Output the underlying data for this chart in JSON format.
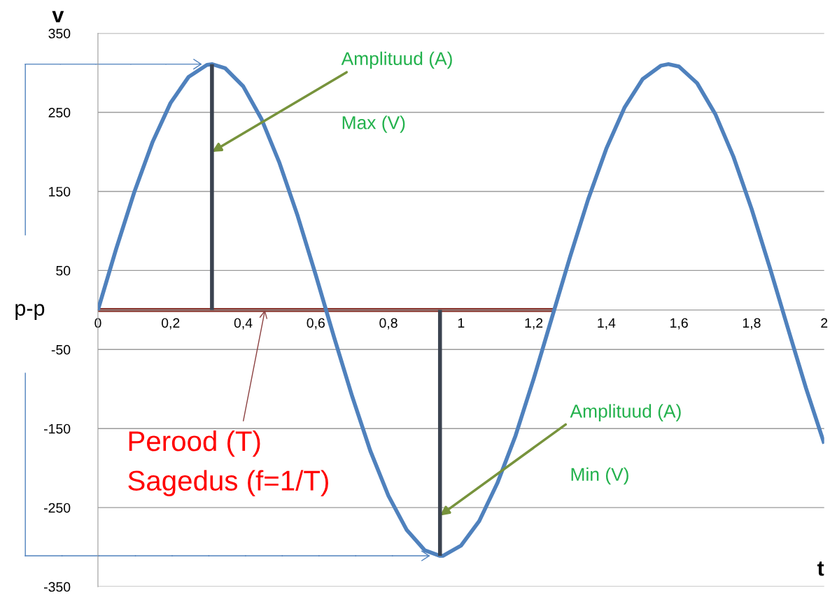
{
  "chart_data": {
    "type": "line",
    "xlabel": "t",
    "ylabel": "v",
    "series": [
      {
        "color": "#4f81bd",
        "x": [
          0,
          0.05,
          0.1,
          0.15,
          0.2,
          0.25,
          0.3,
          0.314,
          0.35,
          0.4,
          0.45,
          0.5,
          0.55,
          0.6,
          0.65,
          0.7,
          0.75,
          0.8,
          0.85,
          0.9,
          0.942,
          0.95,
          1.0,
          1.05,
          1.1,
          1.15,
          1.2,
          1.25,
          1.3,
          1.35,
          1.4,
          1.45,
          1.5,
          1.55,
          1.571,
          1.6,
          1.65,
          1.7,
          1.75,
          1.8,
          1.85,
          1.9,
          1.95,
          2.0
        ],
        "values": [
          0,
          77,
          149,
          212,
          262,
          295,
          310,
          311,
          306,
          283,
          242,
          186,
          119,
          44,
          -34,
          -109,
          -178,
          -235,
          -278,
          -304,
          -311,
          -311,
          -298,
          -267,
          -219,
          -159,
          -87,
          -10,
          67,
          140,
          204,
          256,
          292,
          309,
          311,
          308,
          287,
          248,
          194,
          128,
          54,
          -23,
          -99,
          -169
        ]
      },
      {
        "color": "#3b4350",
        "x": [
          0.314,
          0.314
        ],
        "values": [
          0,
          311
        ]
      },
      {
        "color": "#3b4350",
        "x": [
          0.942,
          0.942
        ],
        "values": [
          0,
          -311
        ]
      },
      {
        "color": "#8b3a32",
        "x": [
          0,
          1.257
        ],
        "values": [
          0,
          0
        ]
      }
    ],
    "annotations": [
      {
        "text": "Amplituud (A)",
        "x": 0.314,
        "y": 200
      },
      "Max (V)",
      {
        "text": "Amplituud (A)",
        "x": 0.942,
        "y": -260
      },
      "Min (V)",
      {
        "text": "Perood (T)",
        "x": 0.46,
        "y": 0
      },
      "Sagedus (f=1/T)",
      "p-p"
    ],
    "xlim": [
      0,
      2
    ],
    "ylim": [
      -350,
      350
    ],
    "xticks": [
      0,
      {
        "value": 0.2,
        "label": "0,2"
      },
      {
        "value": 0.4,
        "label": "0,4"
      },
      {
        "value": 0.6,
        "label": "0,6"
      },
      {
        "value": 0.8,
        "label": "0,8"
      },
      1,
      {
        "value": 1.2,
        "label": "1,2"
      },
      {
        "value": 1.4,
        "label": "1,4"
      },
      {
        "value": 1.6,
        "label": "1,6"
      },
      {
        "value": 1.8,
        "label": "1,8"
      },
      2
    ],
    "yticks": [
      -350,
      -250,
      -150,
      -50,
      50,
      150,
      250,
      350
    ],
    "grid": "y",
    "legend": false
  }
}
